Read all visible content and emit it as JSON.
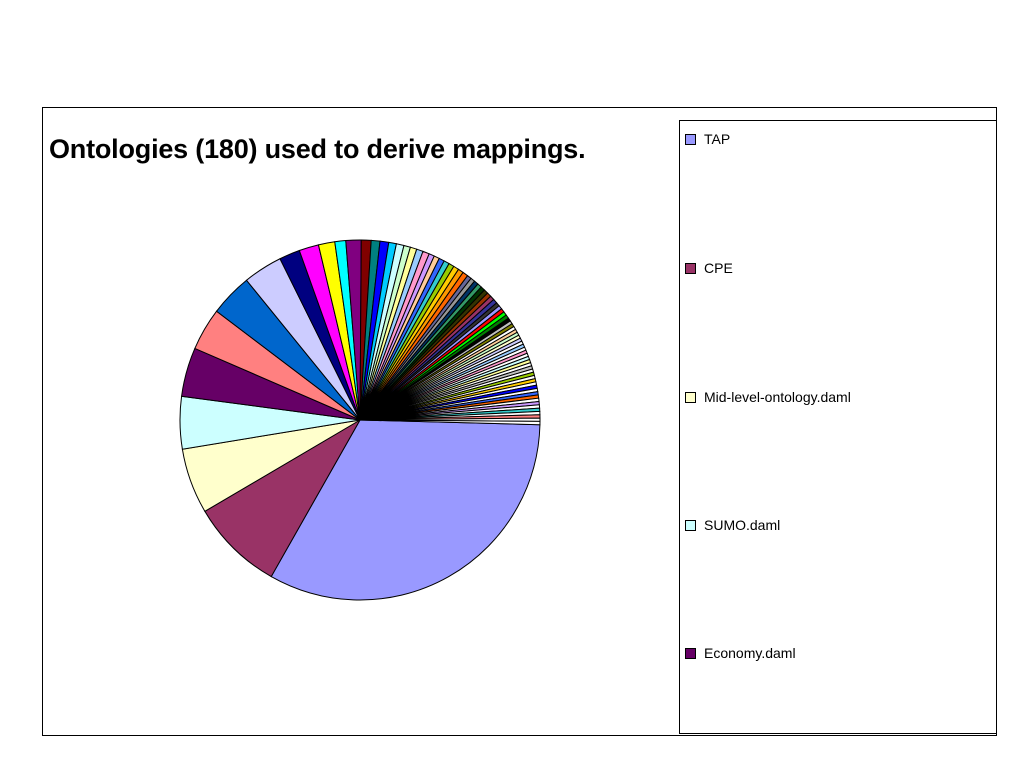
{
  "chart_data": {
    "type": "pie",
    "title": "Ontologies (180) used to derive mappings.",
    "legend": "right",
    "slices": [
      {
        "name": "TAP",
        "value": 33.5,
        "color": "#9999FF"
      },
      {
        "name": "CPE",
        "value": 8.5,
        "color": "#993366"
      },
      {
        "name": "Mid-level-ontology.daml",
        "value": 6.0,
        "color": "#FFFFCC"
      },
      {
        "name": "SUMO.daml",
        "value": 4.8,
        "color": "#CCFFFF"
      },
      {
        "name": "Economy.daml",
        "value": 4.5,
        "color": "#660066"
      },
      {
        "value": 3.9,
        "color": "#FF8080"
      },
      {
        "value": 3.9,
        "color": "#0066CC"
      },
      {
        "value": 3.6,
        "color": "#CCCCFF"
      },
      {
        "value": 1.9,
        "color": "#000080"
      },
      {
        "value": 1.8,
        "color": "#FF00FF"
      },
      {
        "value": 1.5,
        "color": "#FFFF00"
      },
      {
        "value": 1.0,
        "color": "#00FFFF"
      },
      {
        "value": 1.4,
        "color": "#800080"
      },
      {
        "value": 0.9,
        "color": "#800000"
      },
      {
        "value": 0.8,
        "color": "#008080"
      },
      {
        "value": 0.8,
        "color": "#0000FF"
      },
      {
        "value": 0.7,
        "color": "#00CCFF"
      },
      {
        "value": 0.7,
        "color": "#CCFFFF"
      },
      {
        "value": 0.6,
        "color": "#CCFFCC"
      },
      {
        "value": 0.6,
        "color": "#FFFF99"
      },
      {
        "value": 0.6,
        "color": "#99CCFF"
      },
      {
        "value": 0.6,
        "color": "#FF99CC"
      },
      {
        "value": 0.5,
        "color": "#CC99FF"
      },
      {
        "value": 0.5,
        "color": "#FFCC99"
      },
      {
        "value": 0.5,
        "color": "#3366FF"
      },
      {
        "value": 0.5,
        "color": "#33CCCC"
      },
      {
        "value": 0.5,
        "color": "#99CC00"
      },
      {
        "value": 0.5,
        "color": "#FFCC00"
      },
      {
        "value": 0.5,
        "color": "#FF9900"
      },
      {
        "value": 0.5,
        "color": "#FF6600"
      },
      {
        "value": 0.4,
        "color": "#666699"
      },
      {
        "value": 0.4,
        "color": "#969696"
      },
      {
        "value": 0.4,
        "color": "#003366"
      },
      {
        "value": 0.4,
        "color": "#339966"
      },
      {
        "value": 0.4,
        "color": "#003300"
      },
      {
        "value": 0.4,
        "color": "#333300"
      },
      {
        "value": 0.4,
        "color": "#993300"
      },
      {
        "value": 0.4,
        "color": "#993366"
      },
      {
        "value": 0.4,
        "color": "#333399"
      },
      {
        "value": 0.35,
        "color": "#333333"
      },
      {
        "value": 0.35,
        "color": "#9999FF"
      },
      {
        "value": 0.35,
        "color": "#FF0000"
      },
      {
        "value": 0.35,
        "color": "#00FF00"
      },
      {
        "value": 0.35,
        "color": "#008000"
      },
      {
        "value": 0.3,
        "color": "#000000"
      },
      {
        "value": 0.3,
        "color": "#C0C0C0"
      },
      {
        "value": 0.3,
        "color": "#808000"
      },
      {
        "value": 0.3,
        "color": "#FFFFFF"
      },
      {
        "value": 0.3,
        "color": "#FFCC99"
      },
      {
        "value": 0.3,
        "color": "#CCFFCC"
      },
      {
        "value": 0.3,
        "color": "#FFFFCC"
      },
      {
        "value": 0.3,
        "color": "#CCCCFF"
      },
      {
        "value": 0.3,
        "color": "#FFFFFF"
      },
      {
        "value": 0.3,
        "color": "#99CCFF"
      },
      {
        "value": 0.3,
        "color": "#FFFFFF"
      },
      {
        "value": 0.3,
        "color": "#FF99CC"
      },
      {
        "value": 0.3,
        "color": "#FFFFFF"
      },
      {
        "value": 0.3,
        "color": "#CCFFFF"
      },
      {
        "value": 0.3,
        "color": "#FFFF99"
      },
      {
        "value": 0.3,
        "color": "#FFFFFF"
      },
      {
        "value": 0.3,
        "color": "#C0C0C0"
      },
      {
        "value": 0.3,
        "color": "#FFFFFF"
      },
      {
        "value": 0.3,
        "color": "#99CC00"
      },
      {
        "value": 0.3,
        "color": "#FFFFFF"
      },
      {
        "value": 0.3,
        "color": "#FFCC00"
      },
      {
        "value": 0.3,
        "color": "#FFFFFF"
      },
      {
        "value": 0.3,
        "color": "#0000FF"
      },
      {
        "value": 0.3,
        "color": "#FFFFFF"
      },
      {
        "value": 0.3,
        "color": "#3366FF"
      },
      {
        "value": 0.3,
        "color": "#FF6600"
      },
      {
        "value": 0.3,
        "color": "#FFFFFF"
      },
      {
        "value": 0.3,
        "color": "#CC99FF"
      },
      {
        "value": 0.3,
        "color": "#FFFFFF"
      },
      {
        "value": 0.3,
        "color": "#33CCCC"
      },
      {
        "value": 0.3,
        "color": "#FFFFFF"
      },
      {
        "value": 0.3,
        "color": "#FF8080"
      },
      {
        "value": 0.3,
        "color": "#FFFFFF"
      },
      {
        "value": 0.3,
        "color": "#FFFFFF"
      }
    ]
  }
}
